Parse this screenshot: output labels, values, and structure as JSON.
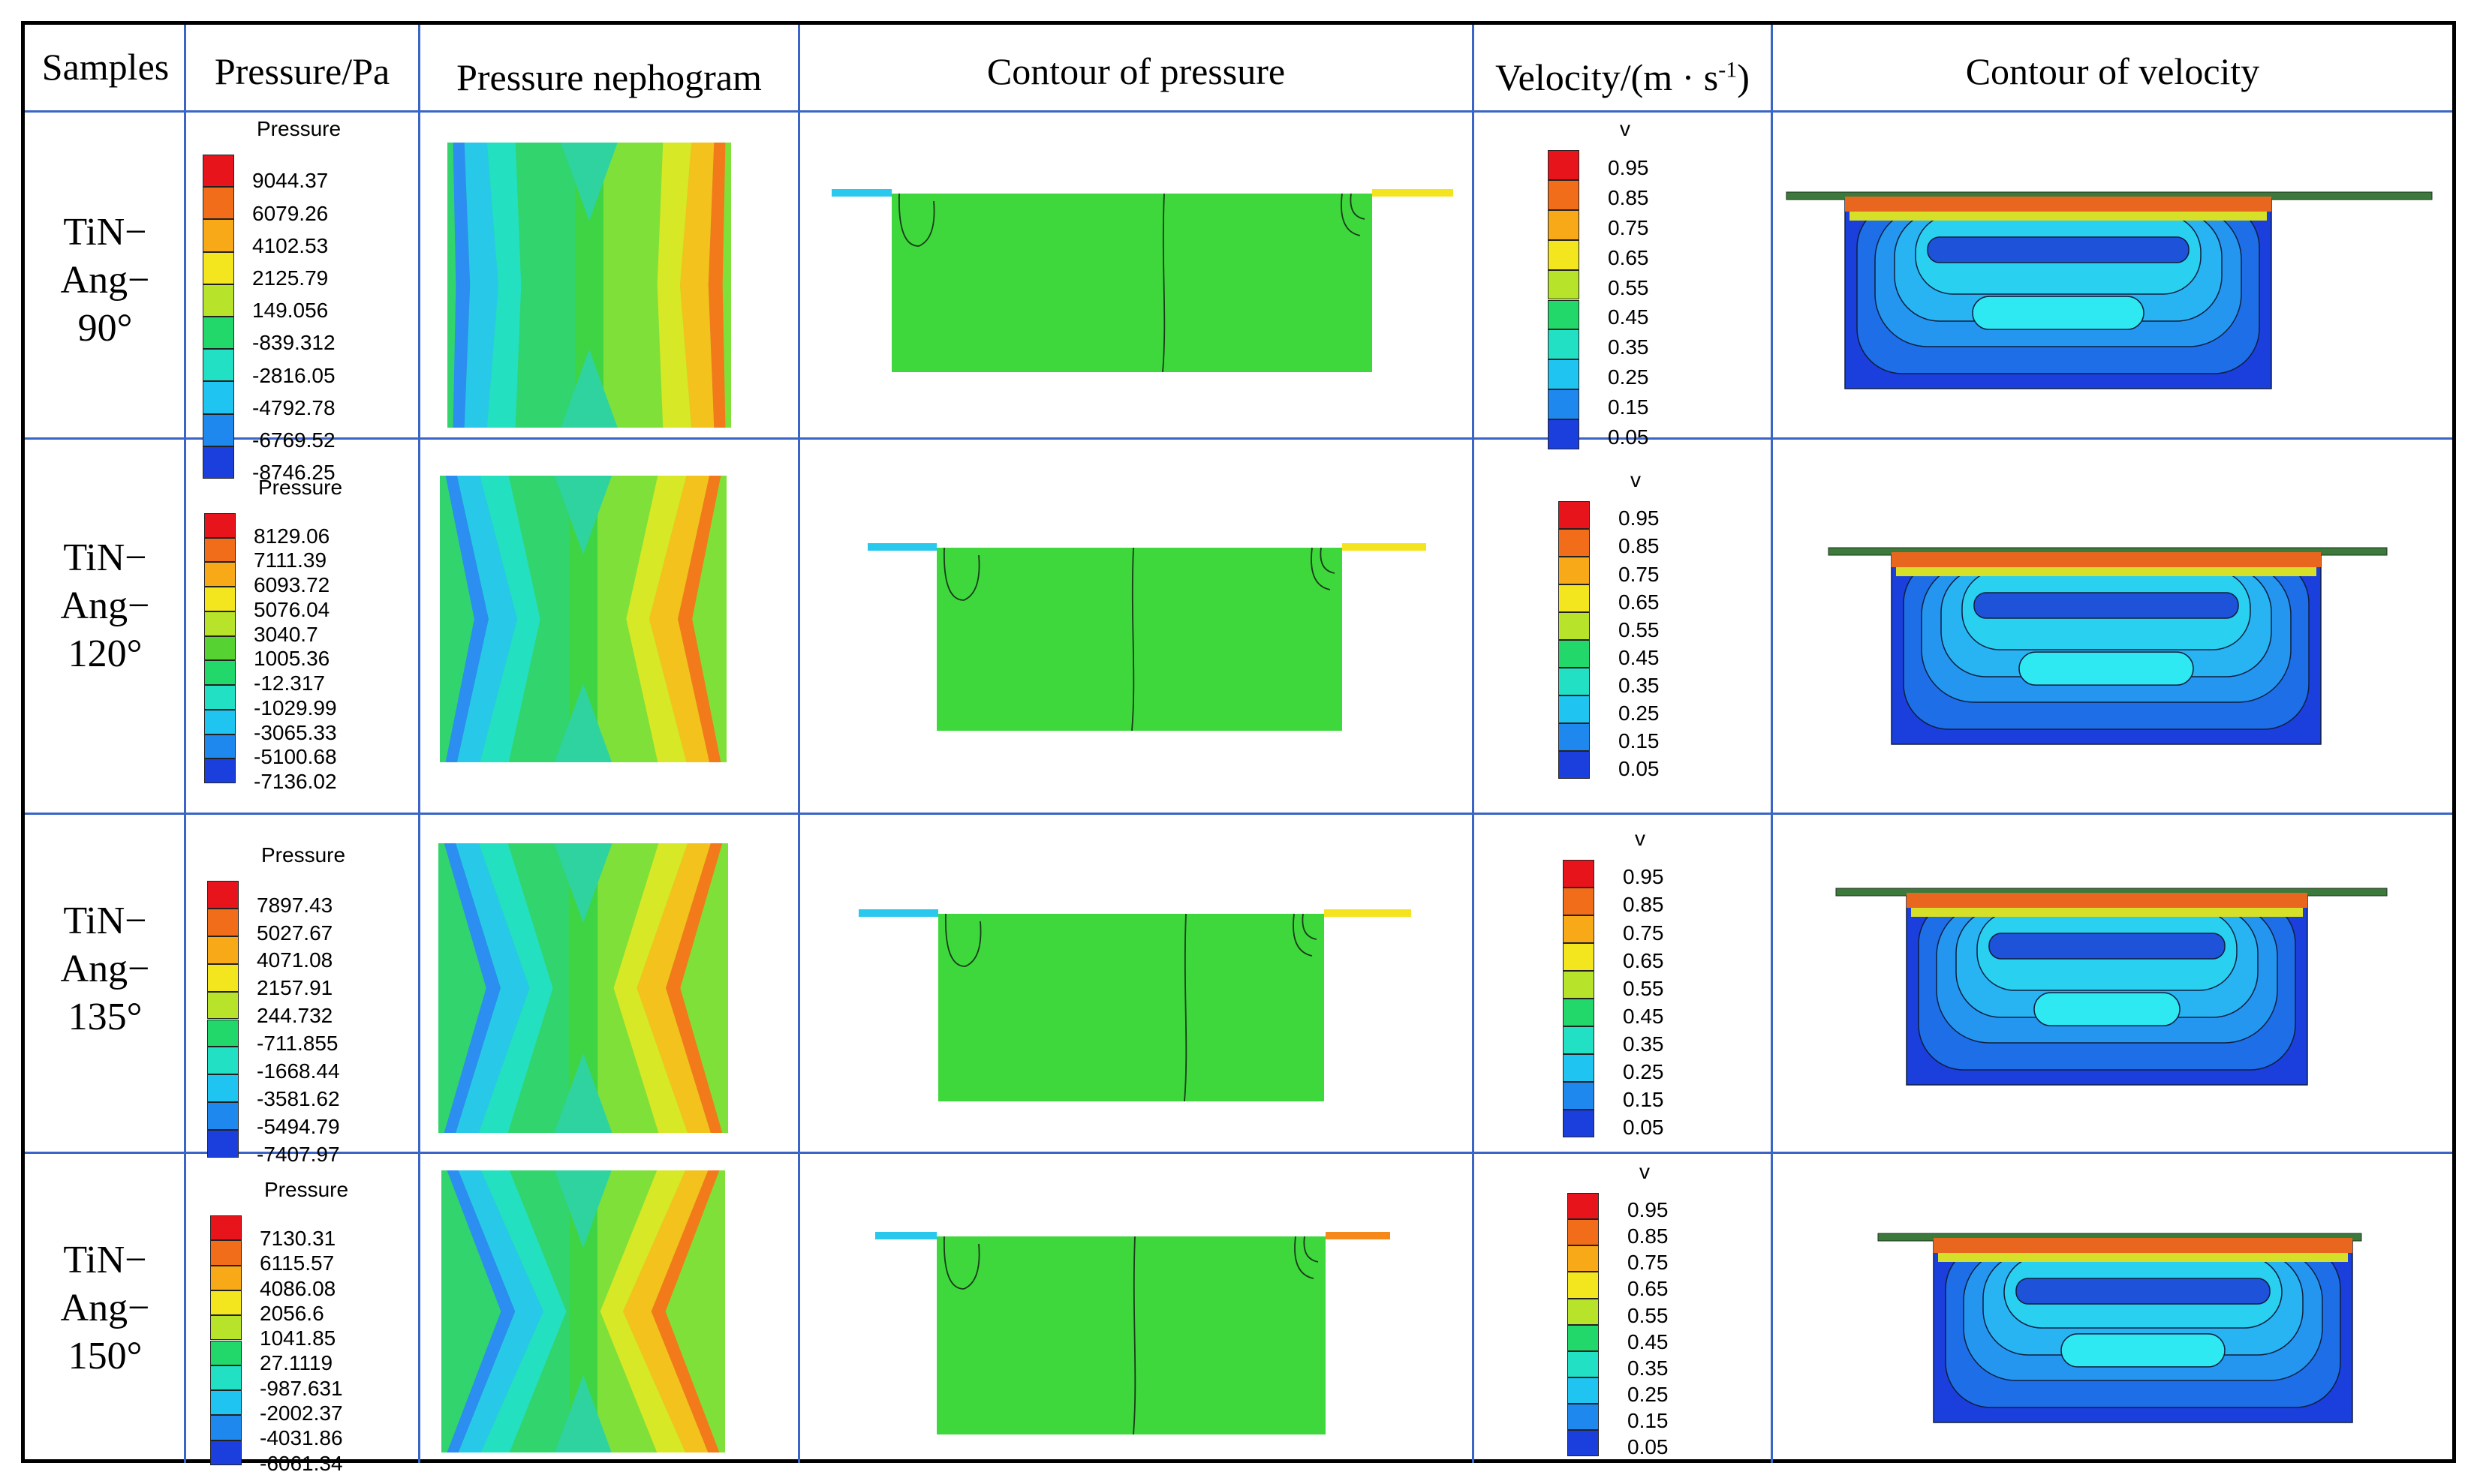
{
  "table": {
    "headers": {
      "samples": "Samples",
      "pressure": "Pressure/Pa",
      "nephogram": "Pressure nephogram",
      "contour_pressure": "Contour of pressure",
      "velocity": "Velocity/(m · s",
      "velocity_exp": "-1",
      "velocity_close": ")",
      "contour_velocity": "Contour of velocity"
    },
    "pressure_legend_title": "Pressure",
    "velocity_legend_title": "v",
    "velocity_values": [
      "0.95",
      "0.85",
      "0.75",
      "0.65",
      "0.55",
      "0.45",
      "0.35",
      "0.25",
      "0.15",
      "0.05"
    ],
    "rows": [
      {
        "l1": "TiN−",
        "l2": "Ang−",
        "l3": "90°",
        "angle": 90,
        "pressure": [
          "9044.37",
          "6079.26",
          "4102.53",
          "2125.79",
          "149.056",
          "-839.312",
          "-2816.05",
          "-4792.78",
          "-6769.52",
          "-8746.25"
        ]
      },
      {
        "l1": "TiN−",
        "l2": "Ang−",
        "l3": "120°",
        "angle": 120,
        "pressure": [
          "8129.06",
          "7111.39",
          "6093.72",
          "5076.04",
          "3040.7",
          "1005.36",
          "-12.317",
          "-1029.99",
          "-3065.33",
          "-5100.68",
          "-7136.02"
        ]
      },
      {
        "l1": "TiN−",
        "l2": "Ang−",
        "l3": "135°",
        "angle": 135,
        "pressure": [
          "7897.43",
          "5027.67",
          "4071.08",
          "2157.91",
          "244.732",
          "-711.855",
          "-1668.44",
          "-3581.62",
          "-5494.79",
          "-7407.97"
        ]
      },
      {
        "l1": "TiN−",
        "l2": "Ang−",
        "l3": "150°",
        "angle": 150,
        "pressure": [
          "7130.31",
          "6115.57",
          "4086.08",
          "2056.6",
          "1041.85",
          "27.1119",
          "-987.631",
          "-2002.37",
          "-4031.86",
          "-6061.34"
        ]
      }
    ]
  },
  "colors": {
    "scale": [
      "#e8141c",
      "#f26d19",
      "#f7a918",
      "#f3e51e",
      "#b7e42a",
      "#56d232",
      "#22d86a",
      "#22e0c4",
      "#1fc4f0",
      "#1e88ee",
      "#1a3fdc"
    ],
    "grid": "#3a64c6"
  }
}
